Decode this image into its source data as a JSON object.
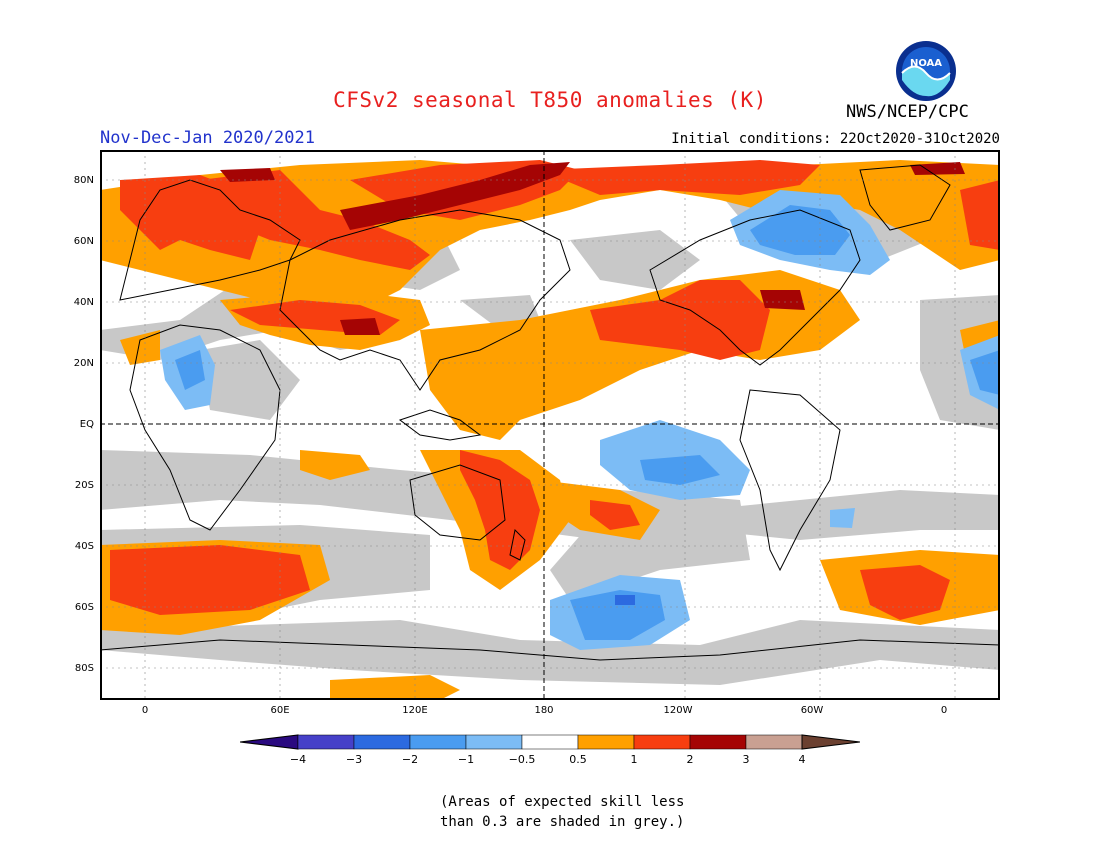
{
  "header": {
    "title": "CFSv2 seasonal T850 anomalies (K)",
    "organization": "NWS/NCEP/CPC",
    "period": "Nov-Dec-Jan 2020/2021",
    "initial_conditions": "Initial conditions: 22Oct2020-31Oct2020",
    "logo_text": "NOAA"
  },
  "map": {
    "y_tick_labels": [
      "80N",
      "60N",
      "40N",
      "20N",
      "EQ",
      "20S",
      "40S",
      "60S",
      "80S"
    ],
    "x_tick_labels": [
      "0",
      "60E",
      "120E",
      "180",
      "120W",
      "60W",
      "0"
    ],
    "x_range_degrees_east": [
      -20,
      380
    ],
    "y_range_degrees_north": [
      -90,
      90
    ],
    "dashed_reference_lines": [
      "EQ",
      "180"
    ],
    "colors": {
      "land_outline": "#000000",
      "skill_grey": "#c8c8c8",
      "background": "#ffffff"
    }
  },
  "legend": {
    "bins": [
      {
        "label": "−4",
        "color": "#2a0aa0"
      },
      {
        "label": "−3",
        "color": "#4640c8"
      },
      {
        "label": "−2",
        "color": "#2c6ae0"
      },
      {
        "label": "−1",
        "color": "#4a9cf0"
      },
      {
        "label": "−0.5",
        "color": "#7cbcf5"
      },
      {
        "label": "0.5",
        "color": "#ffffff"
      },
      {
        "label": "1",
        "color": "#ffa000"
      },
      {
        "label": "2",
        "color": "#f73e10"
      },
      {
        "label": "3",
        "color": "#a50404"
      },
      {
        "label": "4",
        "color": "#c9a092"
      }
    ],
    "min_arrow_color": "#2a0a80",
    "max_arrow_color": "#6b4030"
  },
  "footnote": {
    "line1": "(Areas of expected skill less",
    "line2": "than 0.3 are shaded in grey.)"
  }
}
